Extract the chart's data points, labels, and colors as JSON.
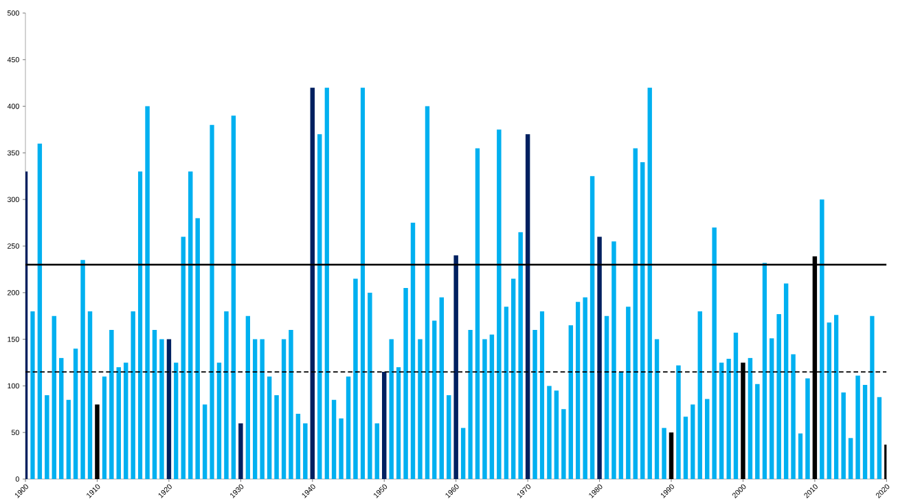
{
  "chart_data": {
    "type": "bar",
    "x": [
      1900,
      1901,
      1902,
      1903,
      1904,
      1905,
      1906,
      1907,
      1908,
      1909,
      1910,
      1911,
      1912,
      1913,
      1914,
      1915,
      1916,
      1917,
      1918,
      1919,
      1920,
      1921,
      1922,
      1923,
      1924,
      1925,
      1926,
      1927,
      1928,
      1929,
      1930,
      1931,
      1932,
      1933,
      1934,
      1935,
      1936,
      1937,
      1938,
      1939,
      1940,
      1941,
      1942,
      1943,
      1944,
      1945,
      1946,
      1947,
      1948,
      1949,
      1950,
      1951,
      1952,
      1953,
      1954,
      1955,
      1956,
      1957,
      1958,
      1959,
      1960,
      1961,
      1962,
      1963,
      1964,
      1965,
      1966,
      1967,
      1968,
      1969,
      1970,
      1971,
      1972,
      1973,
      1974,
      1975,
      1976,
      1977,
      1978,
      1979,
      1980,
      1981,
      1982,
      1983,
      1984,
      1985,
      1986,
      1987,
      1988,
      1989,
      1990,
      1991,
      1992,
      1993,
      1994,
      1995,
      1996,
      1997,
      1998,
      1999,
      2000,
      2001,
      2002,
      2003,
      2004,
      2005,
      2006,
      2007,
      2008,
      2009,
      2010,
      2011,
      2012,
      2013,
      2014,
      2015,
      2016,
      2017,
      2018,
      2019,
      2020
    ],
    "values": [
      330,
      180,
      360,
      90,
      175,
      130,
      85,
      140,
      235,
      180,
      80,
      110,
      160,
      120,
      125,
      180,
      330,
      400,
      160,
      150,
      150,
      125,
      260,
      330,
      280,
      80,
      380,
      125,
      180,
      390,
      60,
      175,
      150,
      150,
      110,
      90,
      150,
      160,
      70,
      60,
      420,
      370,
      420,
      85,
      65,
      110,
      215,
      420,
      200,
      60,
      115,
      150,
      120,
      205,
      275,
      150,
      400,
      170,
      195,
      90,
      240,
      55,
      160,
      355,
      150,
      155,
      375,
      185,
      215,
      265,
      370,
      160,
      180,
      100,
      95,
      75,
      165,
      190,
      195,
      325,
      260,
      175,
      255,
      115,
      185,
      355,
      340,
      420,
      150,
      55,
      50,
      122,
      67,
      80,
      180,
      86,
      270,
      125,
      129,
      157,
      125,
      130,
      102,
      232,
      151,
      177,
      210,
      134,
      49,
      108,
      239,
      300,
      168,
      176,
      93,
      44,
      111,
      101,
      175,
      88,
      37
    ],
    "colors": [
      "#002060",
      "#00b0f0",
      "#00b0f0",
      "#00b0f0",
      "#00b0f0",
      "#00b0f0",
      "#00b0f0",
      "#00b0f0",
      "#00b0f0",
      "#00b0f0",
      "#000000",
      "#00b0f0",
      "#00b0f0",
      "#00b0f0",
      "#00b0f0",
      "#00b0f0",
      "#00b0f0",
      "#00b0f0",
      "#00b0f0",
      "#00b0f0",
      "#002060",
      "#00b0f0",
      "#00b0f0",
      "#00b0f0",
      "#00b0f0",
      "#00b0f0",
      "#00b0f0",
      "#00b0f0",
      "#00b0f0",
      "#00b0f0",
      "#002060",
      "#00b0f0",
      "#00b0f0",
      "#00b0f0",
      "#00b0f0",
      "#00b0f0",
      "#00b0f0",
      "#00b0f0",
      "#00b0f0",
      "#00b0f0",
      "#002060",
      "#00b0f0",
      "#00b0f0",
      "#00b0f0",
      "#00b0f0",
      "#00b0f0",
      "#00b0f0",
      "#00b0f0",
      "#00b0f0",
      "#00b0f0",
      "#002060",
      "#00b0f0",
      "#00b0f0",
      "#00b0f0",
      "#00b0f0",
      "#00b0f0",
      "#00b0f0",
      "#00b0f0",
      "#00b0f0",
      "#00b0f0",
      "#002060",
      "#00b0f0",
      "#00b0f0",
      "#00b0f0",
      "#00b0f0",
      "#00b0f0",
      "#00b0f0",
      "#00b0f0",
      "#00b0f0",
      "#00b0f0",
      "#002060",
      "#00b0f0",
      "#00b0f0",
      "#00b0f0",
      "#00b0f0",
      "#00b0f0",
      "#00b0f0",
      "#00b0f0",
      "#00b0f0",
      "#00b0f0",
      "#002060",
      "#00b0f0",
      "#00b0f0",
      "#00b0f0",
      "#00b0f0",
      "#00b0f0",
      "#00b0f0",
      "#00b0f0",
      "#00b0f0",
      "#00b0f0",
      "#000000",
      "#00b0f0",
      "#00b0f0",
      "#00b0f0",
      "#00b0f0",
      "#00b0f0",
      "#00b0f0",
      "#00b0f0",
      "#00b0f0",
      "#00b0f0",
      "#000000",
      "#00b0f0",
      "#00b0f0",
      "#00b0f0",
      "#00b0f0",
      "#00b0f0",
      "#00b0f0",
      "#00b0f0",
      "#00b0f0",
      "#00b0f0",
      "#000000",
      "#00b0f0",
      "#00b0f0",
      "#00b0f0",
      "#00b0f0",
      "#00b0f0",
      "#00b0f0",
      "#00b0f0",
      "#00b0f0",
      "#00b0f0",
      "#000000"
    ],
    "xlim": [
      1900,
      2020
    ],
    "xticks": [
      1900,
      1910,
      1920,
      1930,
      1940,
      1950,
      1960,
      1970,
      1980,
      1990,
      2000,
      2010,
      2020
    ],
    "ylim": [
      0,
      500
    ],
    "yticks": [
      0,
      50,
      100,
      150,
      200,
      250,
      300,
      350,
      400,
      450,
      500
    ],
    "ref_lines": [
      {
        "axis": "y",
        "value": 230,
        "color": "#000000",
        "line_style": "solid"
      },
      {
        "axis": "y",
        "value": 115,
        "color": "#000000",
        "line_style": "dashed"
      }
    ],
    "grid": false
  }
}
